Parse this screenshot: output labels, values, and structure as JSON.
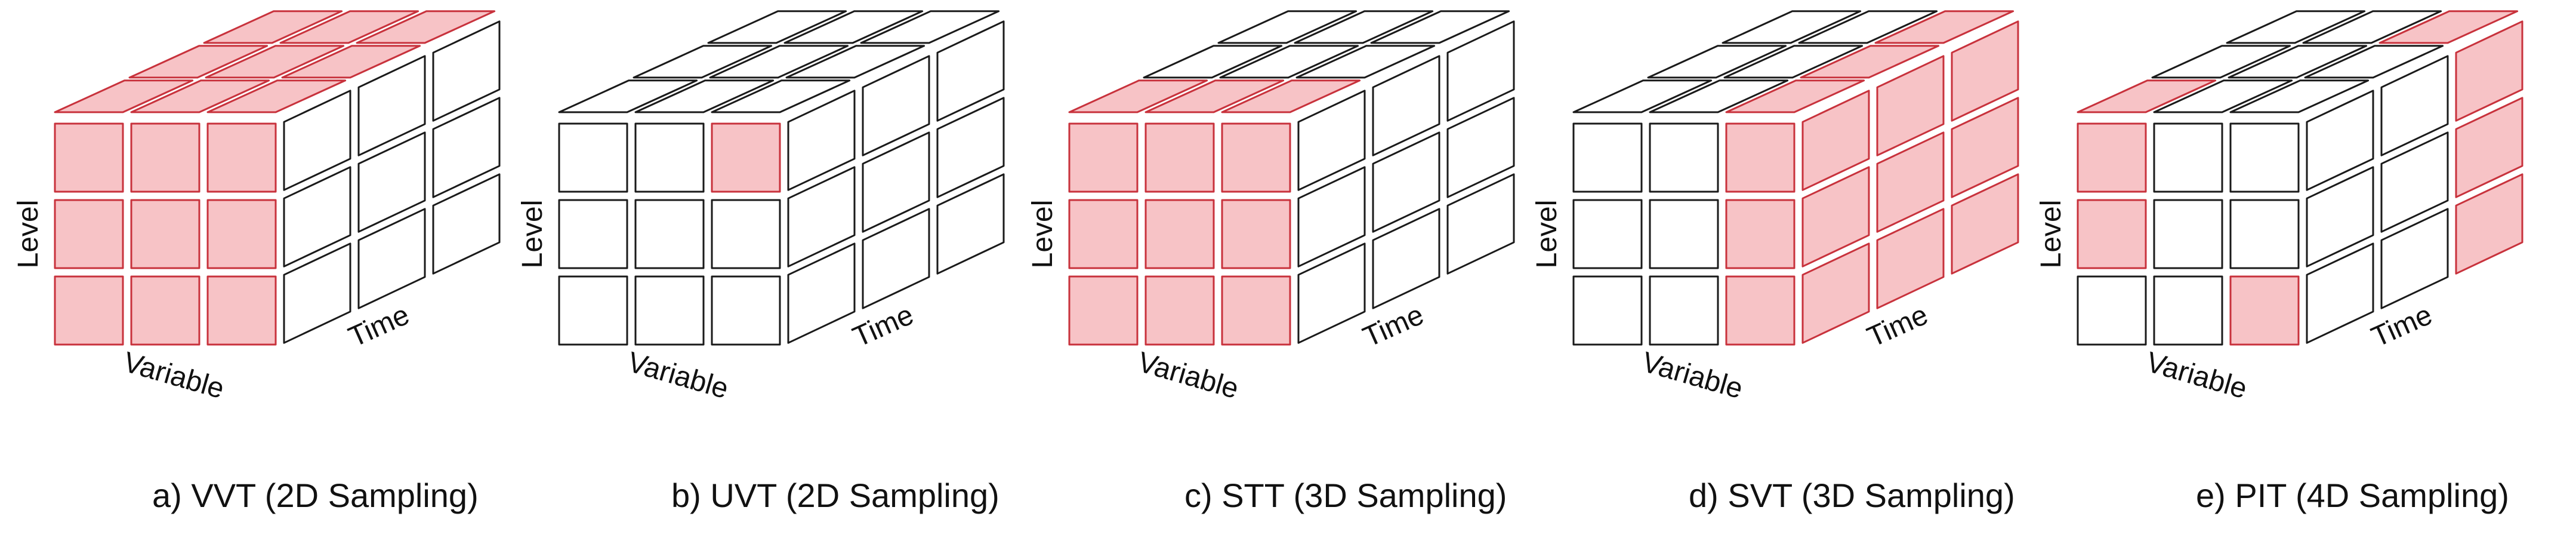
{
  "colors": {
    "highlight_fill": "#f7c3c6",
    "highlight_stroke": "#c8323c",
    "empty_fill": "#ffffff",
    "cube_stroke": "#1a1a1a"
  },
  "panels": [
    {
      "caption": "a) VVT (2D Sampling)",
      "axis_labels": {
        "level": "Level",
        "variable": "Variable",
        "time": "Time"
      },
      "highlighted": {
        "front": "all",
        "right": [],
        "top": "all"
      }
    },
    {
      "caption": "b) UVT (2D Sampling)",
      "axis_labels": {
        "level": "Level",
        "variable": "Variable",
        "time": "Time"
      },
      "highlighted": {
        "front": [
          [
            0,
            2
          ]
        ],
        "right": [],
        "top": []
      }
    },
    {
      "caption": "c) STT (3D Sampling)",
      "axis_labels": {
        "level": "Level",
        "variable": "Variable",
        "time": "Time"
      },
      "highlighted": {
        "front": "all",
        "right": [],
        "top": [
          [
            0,
            0
          ],
          [
            0,
            1
          ],
          [
            0,
            2
          ]
        ]
      }
    },
    {
      "caption": "d) SVT (3D Sampling)",
      "axis_labels": {
        "level": "Level",
        "variable": "Variable",
        "time": "Time"
      },
      "highlighted": {
        "front": [
          [
            0,
            2
          ],
          [
            1,
            2
          ],
          [
            2,
            2
          ]
        ],
        "right": "all",
        "top": [
          [
            0,
            2
          ],
          [
            1,
            2
          ],
          [
            2,
            2
          ]
        ]
      }
    },
    {
      "caption": "e) PIT (4D Sampling)",
      "axis_labels": {
        "level": "Level",
        "variable": "Variable",
        "time": "Time"
      },
      "highlighted": {
        "front": [
          [
            0,
            0
          ],
          [
            1,
            0
          ],
          [
            2,
            2
          ]
        ],
        "right": [
          [
            0,
            2
          ],
          [
            1,
            2
          ],
          [
            2,
            2
          ]
        ],
        "top": [
          [
            0,
            0
          ],
          [
            2,
            2
          ]
        ]
      }
    }
  ]
}
